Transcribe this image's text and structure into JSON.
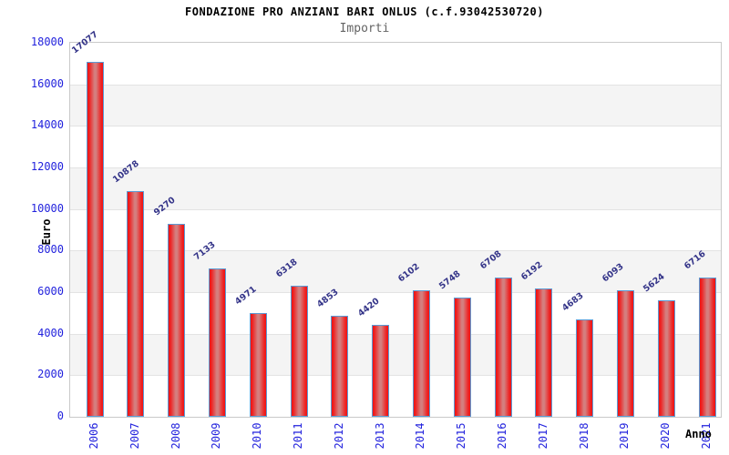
{
  "header": {
    "title": "FONDAZIONE PRO ANZIANI BARI ONLUS (c.f.93042530720)",
    "subtitle": "Importi"
  },
  "chart_data": {
    "type": "bar",
    "title": "FONDAZIONE PRO ANZIANI BARI ONLUS (c.f.93042530720)",
    "subtitle": "Importi",
    "xlabel": "Anno",
    "ylabel": "Euro",
    "categories": [
      "2006",
      "2007",
      "2008",
      "2009",
      "2010",
      "2011",
      "2012",
      "2013",
      "2014",
      "2015",
      "2016",
      "2017",
      "2018",
      "2019",
      "2020",
      "2021"
    ],
    "values": [
      17077,
      10878,
      9270,
      7133,
      4971,
      6318,
      4853,
      4420,
      6102,
      5748,
      6708,
      6192,
      4683,
      6093,
      5624,
      6716
    ],
    "ylim": [
      0,
      18000
    ],
    "ytick_step": 2000,
    "yticks": [
      0,
      2000,
      4000,
      6000,
      8000,
      10000,
      12000,
      14000,
      16000,
      18000
    ],
    "grid": "horizontal-stripes",
    "legend": "none",
    "bar_value_labels": true
  },
  "colors": {
    "bar_fill": "#ee1313",
    "bar_fill_center": "#d47f7f",
    "bar_border": "#5b9bd5",
    "axis_tick_label": "#2222dd",
    "value_label": "#333388",
    "stripe_gray": "#f4f4f4",
    "grid_line": "#e3e3e3",
    "title": "#000000",
    "subtitle": "#646464"
  }
}
